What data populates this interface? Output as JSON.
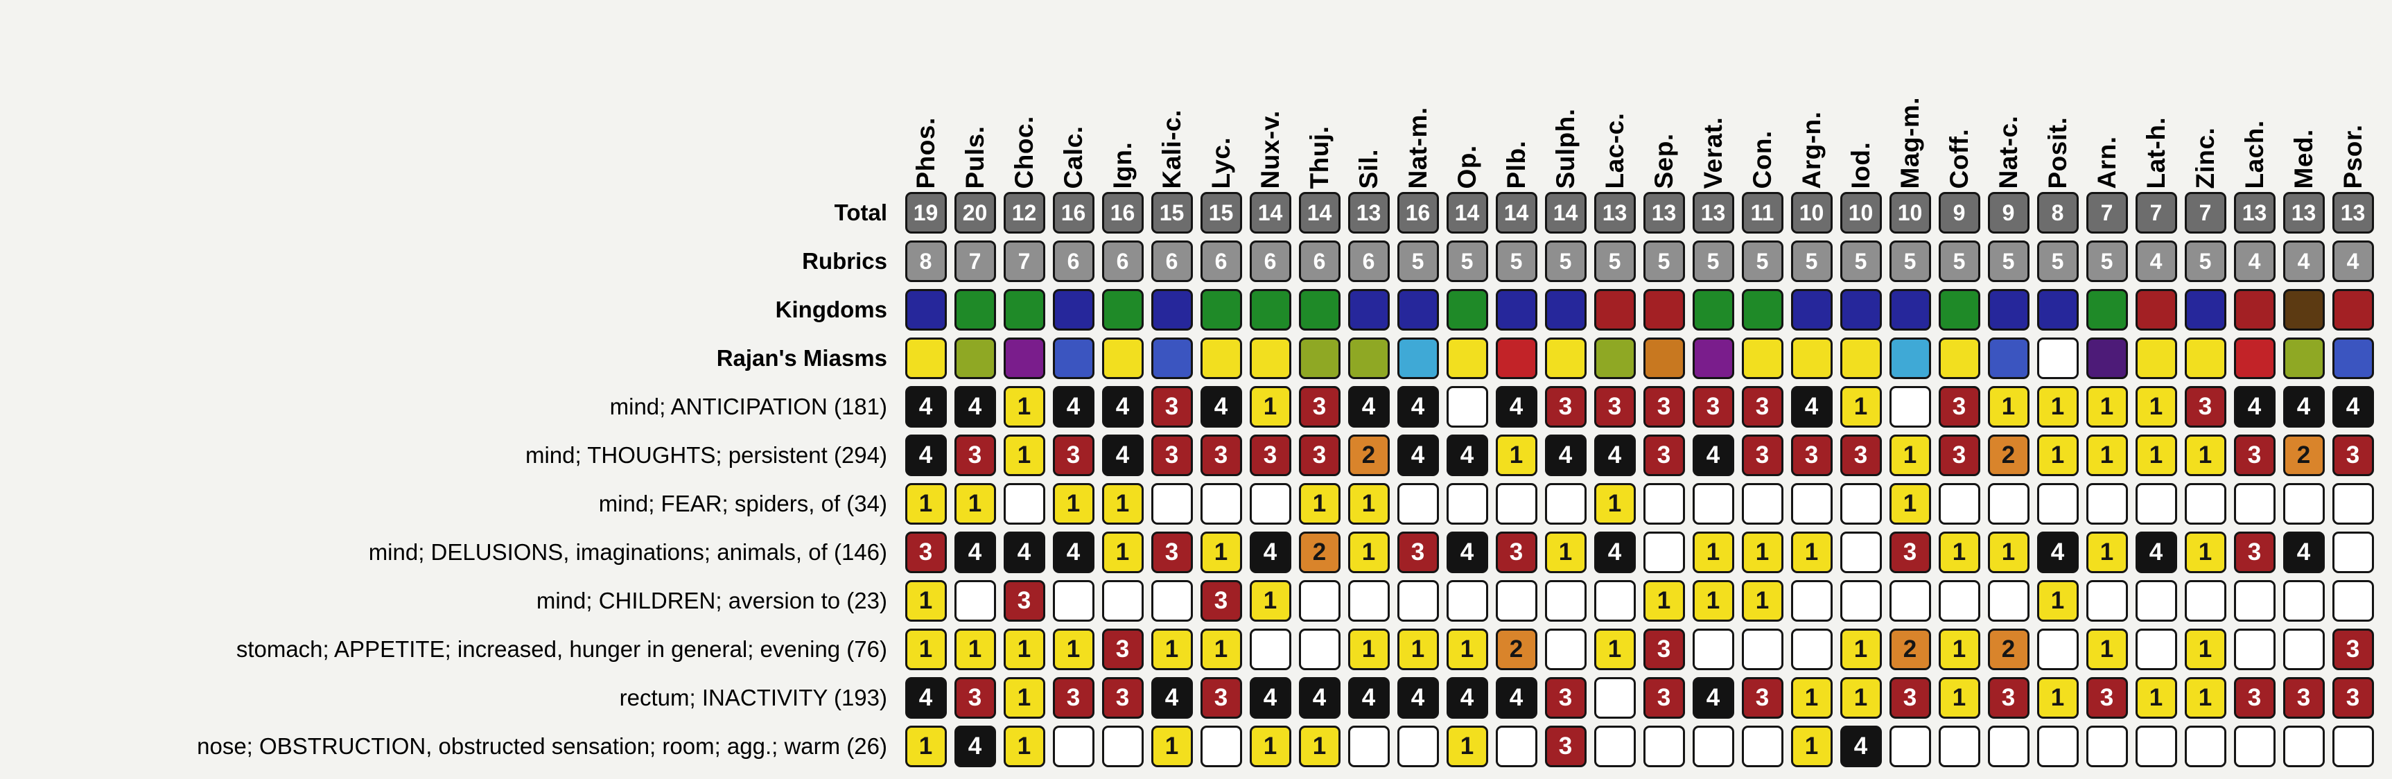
{
  "row_labels": {
    "total": "Total",
    "rubrics": "Rubrics",
    "kingdoms": "Kingdoms",
    "miasms": "Rajan's Miasms"
  },
  "header_colors": {
    "total_bg": "#6d6d6d",
    "rubrics_bg": "#8f8f8f",
    "number_fg": "#ffffff",
    "blank_bg": "#ffffff",
    "cell_border": "#141414",
    "page_bg": "#f3f3f0"
  },
  "grade_colors": {
    "1": {
      "bg": "#f3df1e",
      "fg": "#151515"
    },
    "2": {
      "bg": "#d9842b",
      "fg": "#151515"
    },
    "3": {
      "bg": "#a02025",
      "fg": "#ffffff"
    },
    "4": {
      "bg": "#131313",
      "fg": "#ffffff"
    }
  },
  "remedies": [
    {
      "name": "Phos.",
      "total": 19,
      "rubrics": 8,
      "kingdom_color": "#26279b",
      "miasm_color": "#f2df1f"
    },
    {
      "name": "Puls.",
      "total": 20,
      "rubrics": 7,
      "kingdom_color": "#1f8a28",
      "miasm_color": "#8fa824"
    },
    {
      "name": "Choc.",
      "total": 12,
      "rubrics": 7,
      "kingdom_color": "#1f8a28",
      "miasm_color": "#7a1d8c"
    },
    {
      "name": "Calc.",
      "total": 16,
      "rubrics": 6,
      "kingdom_color": "#26279b",
      "miasm_color": "#3b55c0"
    },
    {
      "name": "Ign.",
      "total": 16,
      "rubrics": 6,
      "kingdom_color": "#1f8a28",
      "miasm_color": "#f2df1f"
    },
    {
      "name": "Kali-c.",
      "total": 15,
      "rubrics": 6,
      "kingdom_color": "#26279b",
      "miasm_color": "#3b55c0"
    },
    {
      "name": "Lyc.",
      "total": 15,
      "rubrics": 6,
      "kingdom_color": "#1f8a28",
      "miasm_color": "#f2df1f"
    },
    {
      "name": "Nux-v.",
      "total": 14,
      "rubrics": 6,
      "kingdom_color": "#1f8a28",
      "miasm_color": "#f2df1f"
    },
    {
      "name": "Thuj.",
      "total": 14,
      "rubrics": 6,
      "kingdom_color": "#1f8a28",
      "miasm_color": "#8fa824"
    },
    {
      "name": "Sil.",
      "total": 13,
      "rubrics": 6,
      "kingdom_color": "#26279b",
      "miasm_color": "#8fa824"
    },
    {
      "name": "Nat-m.",
      "total": 16,
      "rubrics": 5,
      "kingdom_color": "#26279b",
      "miasm_color": "#3fa9d6"
    },
    {
      "name": "Op.",
      "total": 14,
      "rubrics": 5,
      "kingdom_color": "#1f8a28",
      "miasm_color": "#f2df1f"
    },
    {
      "name": "Plb.",
      "total": 14,
      "rubrics": 5,
      "kingdom_color": "#26279b",
      "miasm_color": "#c22328"
    },
    {
      "name": "Sulph.",
      "total": 14,
      "rubrics": 5,
      "kingdom_color": "#26279b",
      "miasm_color": "#f2df1f"
    },
    {
      "name": "Lac-c.",
      "total": 13,
      "rubrics": 5,
      "kingdom_color": "#a32024",
      "miasm_color": "#8fa824"
    },
    {
      "name": "Sep.",
      "total": 13,
      "rubrics": 5,
      "kingdom_color": "#a32024",
      "miasm_color": "#c87820"
    },
    {
      "name": "Verat.",
      "total": 13,
      "rubrics": 5,
      "kingdom_color": "#1f8a28",
      "miasm_color": "#7a1d8c"
    },
    {
      "name": "Con.",
      "total": 11,
      "rubrics": 5,
      "kingdom_color": "#1f8a28",
      "miasm_color": "#f2df1f"
    },
    {
      "name": "Arg-n.",
      "total": 10,
      "rubrics": 5,
      "kingdom_color": "#26279b",
      "miasm_color": "#f2df1f"
    },
    {
      "name": "Iod.",
      "total": 10,
      "rubrics": 5,
      "kingdom_color": "#26279b",
      "miasm_color": "#f2df1f"
    },
    {
      "name": "Mag-m.",
      "total": 10,
      "rubrics": 5,
      "kingdom_color": "#26279b",
      "miasm_color": "#3fa9d6"
    },
    {
      "name": "Coff.",
      "total": 9,
      "rubrics": 5,
      "kingdom_color": "#1f8a28",
      "miasm_color": "#f2df1f"
    },
    {
      "name": "Nat-c.",
      "total": 9,
      "rubrics": 5,
      "kingdom_color": "#26279b",
      "miasm_color": "#3b55c0"
    },
    {
      "name": "Posit.",
      "total": 8,
      "rubrics": 5,
      "kingdom_color": "#26279b",
      "miasm_color": "#ffffff"
    },
    {
      "name": "Arn.",
      "total": 7,
      "rubrics": 5,
      "kingdom_color": "#1f8a28",
      "miasm_color": "#4d1b78"
    },
    {
      "name": "Lat-h.",
      "total": 7,
      "rubrics": 4,
      "kingdom_color": "#a32024",
      "miasm_color": "#f2df1f"
    },
    {
      "name": "Zinc.",
      "total": 7,
      "rubrics": 5,
      "kingdom_color": "#26279b",
      "miasm_color": "#f2df1f"
    },
    {
      "name": "Lach.",
      "total": 13,
      "rubrics": 4,
      "kingdom_color": "#a32024",
      "miasm_color": "#c22328"
    },
    {
      "name": "Med.",
      "total": 13,
      "rubrics": 4,
      "kingdom_color": "#5c3a12",
      "miasm_color": "#8fa824"
    },
    {
      "name": "Psor.",
      "total": 13,
      "rubrics": 4,
      "kingdom_color": "#a32024",
      "miasm_color": "#3b55c0"
    }
  ],
  "rubrics": [
    {
      "label": "mind; ANTICIPATION (181)",
      "grades": [
        4,
        4,
        1,
        4,
        4,
        3,
        4,
        1,
        3,
        4,
        4,
        null,
        4,
        3,
        3,
        3,
        3,
        3,
        4,
        1,
        null,
        3,
        1,
        1,
        1,
        1,
        3,
        4,
        4,
        4
      ]
    },
    {
      "label": "mind; THOUGHTS; persistent (294)",
      "grades": [
        4,
        3,
        1,
        3,
        4,
        3,
        3,
        3,
        3,
        2,
        4,
        4,
        1,
        4,
        4,
        3,
        4,
        3,
        3,
        3,
        1,
        3,
        2,
        1,
        1,
        1,
        1,
        3,
        2,
        3
      ]
    },
    {
      "label": "mind; FEAR; spiders, of (34)",
      "grades": [
        1,
        1,
        null,
        1,
        1,
        null,
        null,
        null,
        1,
        1,
        null,
        null,
        null,
        null,
        1,
        null,
        null,
        null,
        null,
        null,
        1,
        null,
        null,
        null,
        null,
        null,
        null,
        null,
        null,
        null
      ]
    },
    {
      "label": "mind; DELUSIONS, imaginations; animals, of (146)",
      "grades": [
        3,
        4,
        4,
        4,
        1,
        3,
        1,
        4,
        2,
        1,
        3,
        4,
        3,
        1,
        4,
        null,
        1,
        1,
        1,
        null,
        3,
        1,
        1,
        4,
        1,
        4,
        1,
        3,
        4,
        null
      ]
    },
    {
      "label": "mind; CHILDREN; aversion to (23)",
      "grades": [
        1,
        null,
        3,
        null,
        null,
        null,
        3,
        1,
        null,
        null,
        null,
        null,
        null,
        null,
        null,
        1,
        1,
        1,
        null,
        null,
        null,
        null,
        null,
        1,
        null,
        null,
        null,
        null,
        null,
        null
      ]
    },
    {
      "label": "stomach; APPETITE; increased, hunger in general; evening (76)",
      "grades": [
        1,
        1,
        1,
        1,
        3,
        1,
        1,
        null,
        null,
        1,
        1,
        1,
        2,
        null,
        1,
        3,
        null,
        null,
        null,
        1,
        2,
        1,
        2,
        null,
        1,
        null,
        1,
        null,
        null,
        3
      ]
    },
    {
      "label": "rectum; INACTIVITY (193)",
      "grades": [
        4,
        3,
        1,
        3,
        3,
        4,
        3,
        4,
        4,
        4,
        4,
        4,
        4,
        3,
        null,
        3,
        4,
        3,
        1,
        1,
        3,
        1,
        3,
        1,
        3,
        1,
        1,
        3,
        3,
        3
      ]
    },
    {
      "label": "nose; OBSTRUCTION, obstructed sensation; room; agg.; warm (26)",
      "grades": [
        1,
        4,
        1,
        null,
        null,
        1,
        null,
        1,
        1,
        null,
        null,
        1,
        null,
        3,
        null,
        null,
        null,
        null,
        1,
        4,
        null,
        null,
        null,
        null,
        null,
        null,
        null,
        null,
        null,
        null
      ]
    }
  ]
}
